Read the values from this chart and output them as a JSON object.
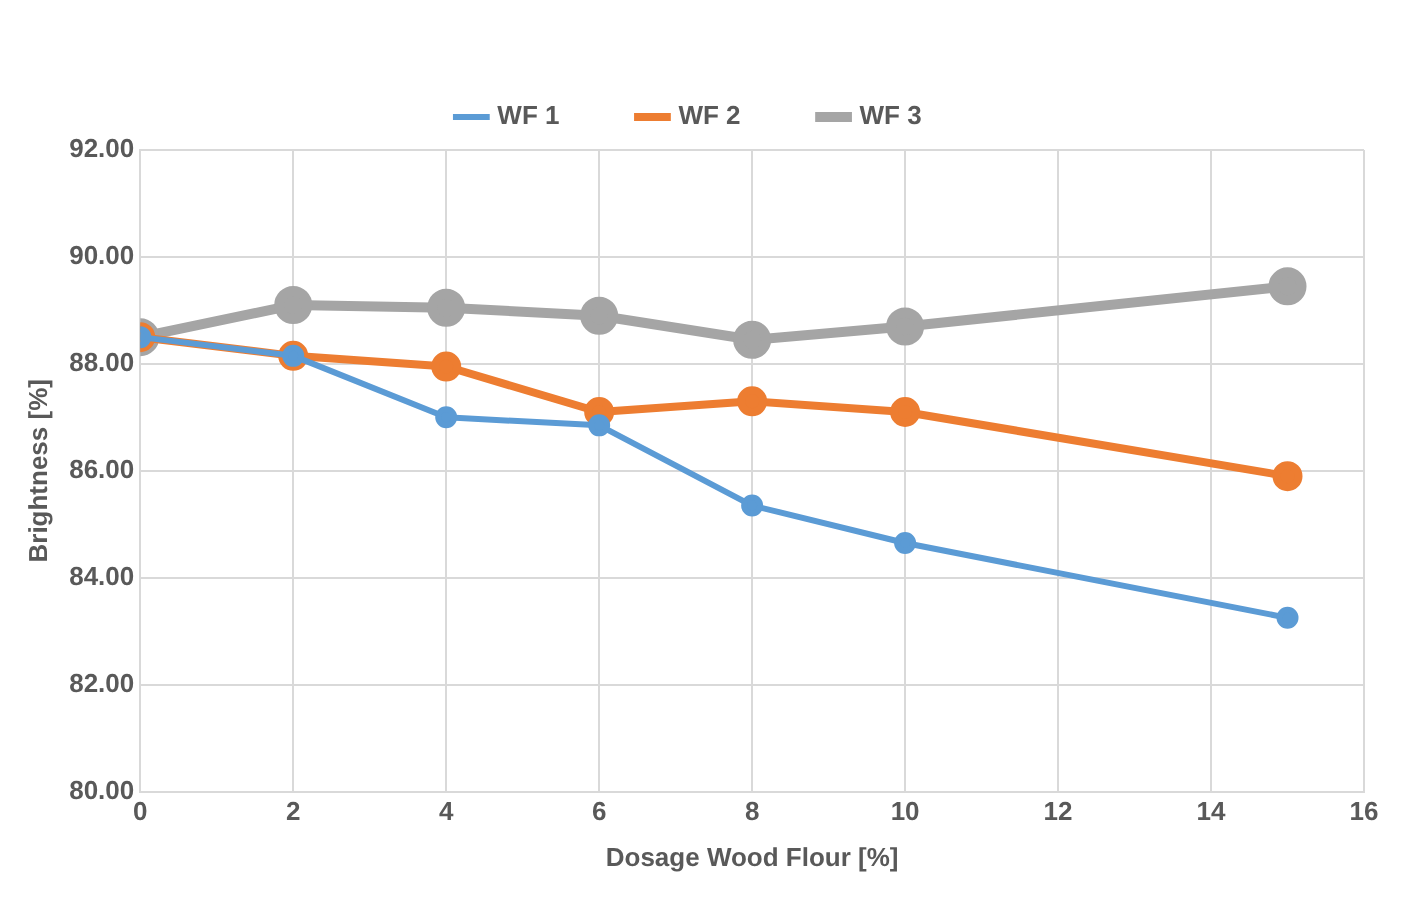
{
  "chart_data": {
    "type": "line",
    "xlabel": "Dosage Wood Flour [%]",
    "ylabel": "Brightness [%]",
    "x": [
      0,
      2,
      4,
      6,
      8,
      10,
      15
    ],
    "series": [
      {
        "name": "WF 1",
        "color": "#5b9bd5",
        "values": [
          88.5,
          88.15,
          87.0,
          86.85,
          85.35,
          84.65,
          83.25
        ]
      },
      {
        "name": "WF 2",
        "color": "#ed7d31",
        "values": [
          88.5,
          88.15,
          87.95,
          87.1,
          87.3,
          87.1,
          85.9
        ]
      },
      {
        "name": "WF 3",
        "color": "#a5a5a5",
        "values": [
          88.5,
          89.1,
          89.05,
          88.9,
          88.45,
          88.7,
          89.45
        ]
      }
    ],
    "xlim": [
      0,
      16
    ],
    "xticks": [
      0,
      2,
      4,
      6,
      8,
      10,
      12,
      14,
      16
    ],
    "ylim": [
      80,
      92
    ],
    "yticks": [
      {
        "value": 80,
        "label": "80.00"
      },
      {
        "value": 82,
        "label": "82.00"
      },
      {
        "value": 84,
        "label": "84.00"
      },
      {
        "value": 86,
        "label": "86.00"
      },
      {
        "value": 88,
        "label": "88.00"
      },
      {
        "value": 90,
        "label": "90.00"
      },
      {
        "value": 92,
        "label": "92.00"
      }
    ],
    "grid": true,
    "legend": "top",
    "marker": "circle",
    "line_style": "solid"
  }
}
